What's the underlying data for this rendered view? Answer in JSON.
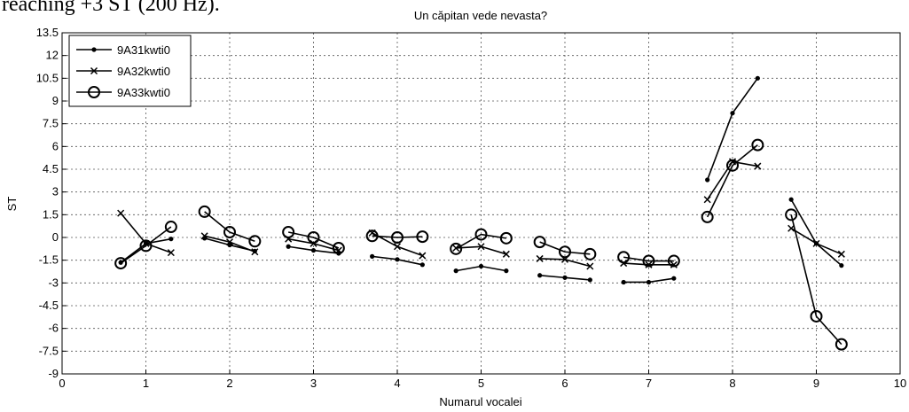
{
  "page_text": "reaching +3 ST (200 Hz).",
  "chart_data": {
    "type": "line",
    "title": "Un căpitan vede nevasta?",
    "xlabel": "Numarul vocalei",
    "ylabel": "ST",
    "x": [
      0.7,
      1,
      1.3,
      null,
      1.7,
      2,
      2.3,
      null,
      2.7,
      3,
      3.3,
      null,
      3.7,
      4,
      4.3,
      null,
      4.7,
      5,
      5.3,
      null,
      5.7,
      6,
      6.3,
      null,
      6.7,
      7,
      7.3,
      null,
      7.7,
      8,
      8.3,
      null,
      8.7,
      9,
      9.3
    ],
    "series": [
      {
        "name": "9A31kwti0",
        "color": "#000000",
        "marker": "dot",
        "values": [
          -1.65,
          -0.4,
          -0.1,
          null,
          -0.05,
          -0.5,
          -0.9,
          null,
          -0.6,
          -0.85,
          -1.05,
          null,
          -1.25,
          -1.45,
          -1.8,
          null,
          -2.2,
          -1.9,
          -2.2,
          null,
          -2.5,
          -2.65,
          -2.8,
          null,
          -2.95,
          -2.95,
          -2.7,
          null,
          3.8,
          8.2,
          10.5,
          null,
          2.5,
          -0.4,
          -1.85
        ]
      },
      {
        "name": "9A32kwti0",
        "color": "#000000",
        "marker": "x",
        "values": [
          1.6,
          -0.4,
          -1.0,
          null,
          0.1,
          -0.3,
          -0.95,
          null,
          -0.1,
          -0.4,
          -0.85,
          null,
          0.3,
          -0.6,
          -1.2,
          null,
          -0.7,
          -0.6,
          -1.1,
          null,
          -1.4,
          -1.45,
          -1.9,
          null,
          -1.7,
          -1.8,
          -1.8,
          null,
          2.5,
          5.0,
          4.7,
          null,
          0.6,
          -0.4,
          -1.1
        ]
      },
      {
        "name": "9A33kwti0",
        "color": "#000000",
        "marker": "o",
        "values": [
          -1.7,
          -0.55,
          0.7,
          null,
          1.7,
          0.35,
          -0.25,
          null,
          0.35,
          0.0,
          -0.7,
          null,
          0.1,
          0.0,
          0.05,
          null,
          -0.75,
          0.2,
          -0.05,
          null,
          -0.3,
          -0.95,
          -1.1,
          null,
          -1.3,
          -1.55,
          -1.55,
          null,
          1.35,
          4.75,
          6.1,
          null,
          1.5,
          -5.2,
          -7.05
        ]
      }
    ],
    "xlim": [
      0,
      10
    ],
    "xticks": [
      0,
      1,
      2,
      3,
      4,
      5,
      6,
      7,
      8,
      9,
      10
    ],
    "ylim": [
      -9,
      13.5
    ],
    "yticks": [
      -9,
      -7.5,
      -6,
      -4.5,
      -3,
      -1.5,
      0,
      1.5,
      3,
      4.5,
      6,
      7.5,
      9,
      10.5,
      12,
      13.5
    ],
    "grid": true,
    "legend": "upper left"
  }
}
